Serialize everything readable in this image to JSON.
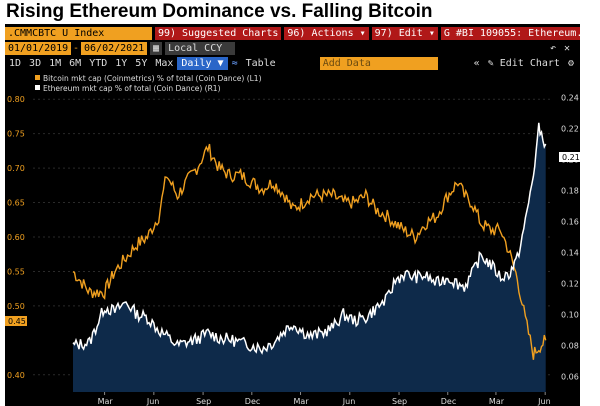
{
  "page_title": "Rising Ethereum Dominance vs. Falling Bitcoin",
  "toolbar": {
    "ticker": ".CMMCBTC U Index",
    "suggested": "99) Suggested Charts",
    "actions": "96) Actions ▾",
    "edit": "97) Edit ▾",
    "chart_id": "G #BI 109055: Ethereum...",
    "start_date": "01/01/2019",
    "end_date": "06/02/2021",
    "dash": "-",
    "currency": "Local CCY",
    "periods": [
      "1D",
      "3D",
      "1M",
      "6M",
      "YTD",
      "1Y",
      "5Y",
      "Max"
    ],
    "frequency": "Daily ▼",
    "table": "Table",
    "add_data": "Add Data",
    "edit_chart": "Edit Chart"
  },
  "icons": [
    "chevron-left-icon",
    "undo-icon",
    "close-icon",
    "line-chart-icon",
    "collapse-icon",
    "gear-icon"
  ],
  "colors": {
    "bitcoin": "#f0a020",
    "ethereum": "#ffffff",
    "area": "#0e2a4a",
    "background": "#000000"
  },
  "chart_data": {
    "type": "line",
    "legend": [
      "Bitcoin mkt cap (Coinmetrics) % of total (Coin Dance) (L1)",
      "Ethereum mkt cap % of total (Coin Dance) (R1)"
    ],
    "legend_position": "top-left",
    "x_tick_labels": [
      "Mar",
      "Jun",
      "Sep",
      "Dec",
      "Mar",
      "Jun",
      "Sep",
      "Dec",
      "Mar",
      "Jun"
    ],
    "left_axis": {
      "ticks": [
        "0.80",
        "0.75",
        "0.70",
        "0.65",
        "0.60",
        "0.55",
        "0.50",
        "0.40"
      ],
      "range": [
        0.375,
        0.825
      ],
      "last_value_label": "0.45"
    },
    "right_axis": {
      "ticks": [
        "0.24",
        "0.22",
        "0.20",
        "0.18",
        "0.16",
        "0.14",
        "0.12",
        "0.10",
        "0.08",
        "0.06"
      ],
      "range": [
        0.05,
        0.25
      ],
      "last_value_label": "0.21"
    },
    "series": [
      {
        "name": "Bitcoin mkt cap (Coinmetrics) % of total (Coin Dance) (L1)",
        "axis": "left",
        "x": [
          "2019-01-01",
          "2019-02-01",
          "2019-03-01",
          "2019-03-20",
          "2019-04-10",
          "2019-05-01",
          "2019-05-20",
          "2019-06-10",
          "2019-06-25",
          "2019-07-15",
          "2019-08-01",
          "2019-08-20",
          "2019-09-10",
          "2019-10-01",
          "2019-10-20",
          "2019-11-10",
          "2019-12-01",
          "2019-12-20",
          "2020-01-10",
          "2020-02-01",
          "2020-02-15",
          "2020-03-05",
          "2020-03-20",
          "2020-04-10",
          "2020-05-01",
          "2020-05-20",
          "2020-06-10",
          "2020-07-01",
          "2020-07-20",
          "2020-08-10",
          "2020-08-25",
          "2020-09-10",
          "2020-10-01",
          "2020-10-20",
          "2020-11-10",
          "2020-12-01",
          "2020-12-20",
          "2021-01-01",
          "2021-01-15",
          "2021-02-01",
          "2021-02-20",
          "2021-03-10",
          "2021-03-25",
          "2021-04-10",
          "2021-04-25",
          "2021-05-10",
          "2021-05-20",
          "2021-06-02"
        ],
        "values": [
          0.55,
          0.52,
          0.52,
          0.55,
          0.57,
          0.59,
          0.6,
          0.63,
          0.69,
          0.66,
          0.68,
          0.7,
          0.73,
          0.7,
          0.69,
          0.69,
          0.68,
          0.67,
          0.68,
          0.66,
          0.64,
          0.65,
          0.66,
          0.66,
          0.66,
          0.65,
          0.65,
          0.66,
          0.64,
          0.63,
          0.62,
          0.61,
          0.6,
          0.62,
          0.63,
          0.66,
          0.68,
          0.66,
          0.65,
          0.62,
          0.61,
          0.61,
          0.58,
          0.54,
          0.48,
          0.43,
          0.44,
          0.45
        ]
      },
      {
        "name": "Ethereum mkt cap % of total (Coin Dance) (R1)",
        "axis": "right",
        "x": [
          "2019-01-01",
          "2019-02-01",
          "2019-03-01",
          "2019-03-20",
          "2019-04-10",
          "2019-05-01",
          "2019-05-20",
          "2019-06-10",
          "2019-06-25",
          "2019-07-15",
          "2019-08-01",
          "2019-08-20",
          "2019-09-10",
          "2019-10-01",
          "2019-10-20",
          "2019-11-10",
          "2019-12-01",
          "2019-12-20",
          "2020-01-10",
          "2020-02-01",
          "2020-02-15",
          "2020-03-05",
          "2020-03-20",
          "2020-04-10",
          "2020-05-01",
          "2020-05-20",
          "2020-06-10",
          "2020-07-01",
          "2020-07-20",
          "2020-08-10",
          "2020-08-25",
          "2020-09-10",
          "2020-10-01",
          "2020-10-20",
          "2020-11-10",
          "2020-12-01",
          "2020-12-20",
          "2021-01-01",
          "2021-01-15",
          "2021-02-01",
          "2021-02-20",
          "2021-03-10",
          "2021-03-25",
          "2021-04-10",
          "2021-04-25",
          "2021-05-10",
          "2021-05-20",
          "2021-06-02"
        ],
        "values": [
          0.08,
          0.082,
          0.105,
          0.102,
          0.108,
          0.1,
          0.098,
          0.09,
          0.086,
          0.08,
          0.082,
          0.084,
          0.088,
          0.085,
          0.084,
          0.082,
          0.08,
          0.078,
          0.082,
          0.09,
          0.094,
          0.089,
          0.086,
          0.088,
          0.092,
          0.1,
          0.096,
          0.098,
          0.104,
          0.11,
          0.122,
          0.126,
          0.124,
          0.125,
          0.12,
          0.124,
          0.12,
          0.118,
          0.126,
          0.138,
          0.132,
          0.124,
          0.126,
          0.136,
          0.16,
          0.19,
          0.22,
          0.21
        ]
      }
    ]
  }
}
